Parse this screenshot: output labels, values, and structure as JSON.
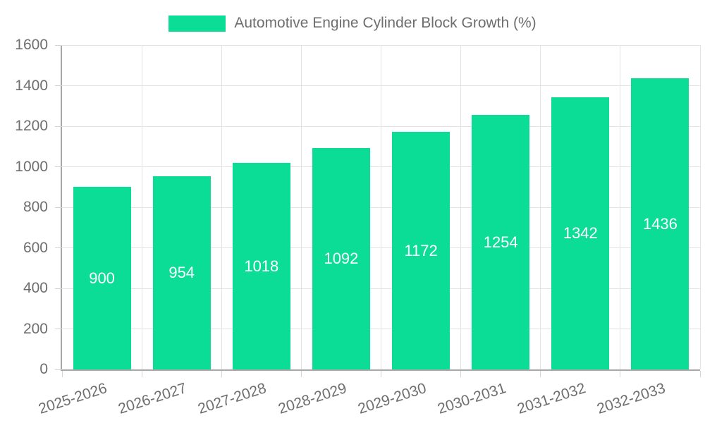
{
  "chart_data": {
    "type": "bar",
    "title": "Automotive Engine Cylinder Block Growth (%)",
    "legend": {
      "label": "Automotive Engine Cylinder Block Growth (%)",
      "position": "top"
    },
    "categories": [
      "2025-2026",
      "2026-2027",
      "2027-2028",
      "2028-2029",
      "2029-2030",
      "2030-2031",
      "2031-2032",
      "2032-2033"
    ],
    "series": [
      {
        "name": "Automotive Engine Cylinder Block Growth (%)",
        "values": [
          900,
          954,
          1018,
          1092,
          1172,
          1254,
          1342,
          1436
        ]
      }
    ],
    "value_labels": [
      "900",
      "954",
      "1018",
      "1092",
      "1172",
      "1254",
      "1342",
      "1436"
    ],
    "xlabel": "",
    "ylabel": "",
    "ylim": [
      0,
      1600
    ],
    "ytick_step": 200,
    "y_tick_labels": [
      "0",
      "200",
      "400",
      "600",
      "800",
      "1000",
      "1200",
      "1400",
      "1600"
    ],
    "grid": true,
    "x_label_rotation_deg": -18,
    "colors": {
      "bar": "#0bdc96",
      "value_label": "#ffffff",
      "axis_text": "#6e6e6e",
      "grid_line": "#e3e3e3",
      "tick_mark": "#d4d4d4",
      "axis_line": "#a8a8a8",
      "background": "#ffffff"
    }
  }
}
